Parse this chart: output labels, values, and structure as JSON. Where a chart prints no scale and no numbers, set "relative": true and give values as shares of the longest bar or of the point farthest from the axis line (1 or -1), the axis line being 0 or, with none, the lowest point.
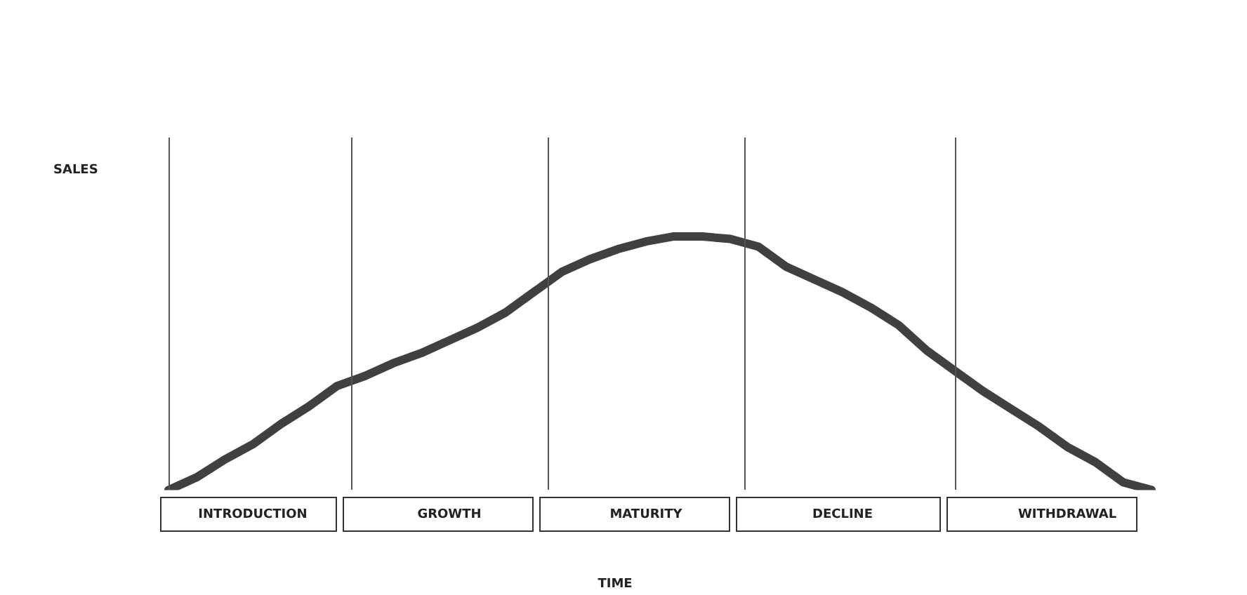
{
  "chart_data": {
    "type": "line",
    "relative": true,
    "xlabel": "TIME",
    "annotations": [
      "SALES"
    ],
    "tick_labels": "x",
    "marker": "none",
    "line_style": "solid",
    "categories": [
      null,
      null,
      null,
      "INTRODUCTION",
      null,
      null,
      null,
      null,
      null,
      null,
      "GROWTH",
      null,
      null,
      null,
      null,
      null,
      null,
      "MATURITY",
      null,
      null,
      null,
      null,
      null,
      null,
      "DECLINE",
      null,
      null,
      null,
      null,
      null,
      null,
      null,
      "WITHDRAWAL",
      null,
      null,
      null
    ],
    "series": [
      {
        "color": "#404040",
        "values": [
          0,
          0.05,
          0.12,
          0.18,
          0.26,
          0.33,
          0.41,
          0.45,
          0.5,
          0.54,
          0.59,
          0.64,
          0.7,
          0.78,
          0.86,
          0.91,
          0.95,
          0.98,
          1,
          1,
          0.99,
          0.96,
          0.88,
          0.83,
          0.78,
          0.72,
          0.65,
          0.55,
          0.47,
          0.39,
          0.32,
          0.25,
          0.17,
          0.11,
          0.03,
          0
        ]
      }
    ]
  }
}
